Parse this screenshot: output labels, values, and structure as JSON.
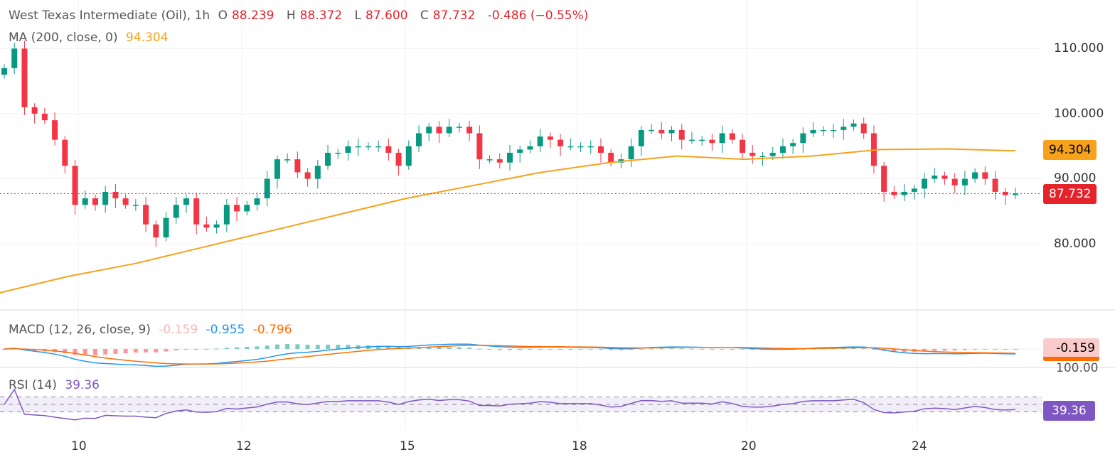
{
  "header": {
    "symbol": "West Texas Intermediate (Oil), 1h",
    "open_label": "O",
    "open": "88.239",
    "high_label": "H",
    "high": "88.372",
    "low_label": "L",
    "low": "87.600",
    "close_label": "C",
    "close": "87.732",
    "change": "-0.486 (−0.55%)"
  },
  "ma_legend": {
    "label": "MA (200, close, 0)",
    "value": "94.304"
  },
  "macd_legend": {
    "label": "MACD (12, 26, close, 9)",
    "hist": "-0.159",
    "macd": "-0.955",
    "signal": "-0.796"
  },
  "rsi_legend": {
    "label": "RSI (14)",
    "value": "39.36"
  },
  "price_axis": [
    "110.000",
    "100.000",
    "90.000",
    "80.000"
  ],
  "price_tags": {
    "ma": "94.304",
    "last": "87.732",
    "macd": "-0.159",
    "rsi_top": "100.00",
    "rsi": "39.36"
  },
  "time_axis": [
    "10",
    "12",
    "15",
    "18",
    "20",
    "24"
  ],
  "colors": {
    "up": "#089981",
    "down": "#f23645",
    "ma": "#f7a21b",
    "macd": "#2196f3",
    "signal": "#ff6d00",
    "rsi": "#7e57c2",
    "last": "#e5232b"
  },
  "chart_data": {
    "type": "candlestick",
    "ylim": [
      72,
      114
    ],
    "price_ticks": [
      80,
      90,
      100,
      110
    ],
    "grid": true,
    "closes": [
      107,
      110,
      101,
      100,
      99,
      96,
      92,
      86,
      87,
      86,
      88,
      87,
      86,
      86,
      83,
      81,
      84,
      86,
      87,
      83,
      82.5,
      83,
      86,
      85,
      86,
      87,
      90,
      93,
      93,
      91,
      90,
      92,
      94,
      94,
      95,
      95,
      95,
      95,
      94,
      92,
      95,
      97,
      98,
      97,
      98,
      98,
      97,
      93,
      93,
      92.5,
      94,
      94.5,
      95,
      96.5,
      96,
      95,
      95,
      95,
      95,
      94,
      92.5,
      93,
      95,
      97.5,
      97.5,
      97,
      97.5,
      96,
      96,
      96,
      95.5,
      97,
      96,
      94,
      93.5,
      93.5,
      94,
      95,
      95.5,
      97,
      97.5,
      97.5,
      97.5,
      98,
      98.5,
      97,
      92,
      88,
      87.5,
      88,
      88.5,
      90,
      90.5,
      90,
      89,
      90,
      91,
      90,
      88,
      87.5,
      87.732
    ],
    "ma200": [
      72.5,
      75,
      77,
      79.5,
      82,
      84.5,
      87,
      89,
      91,
      92.5,
      93.5,
      93,
      93.5,
      94.5,
      94.6,
      94.304
    ],
    "rsi_levels": [
      70,
      50,
      30
    ],
    "last_close": 87.732
  }
}
